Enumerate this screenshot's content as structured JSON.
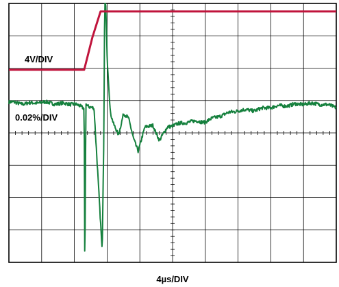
{
  "chart_data": {
    "type": "line",
    "title": "",
    "xlabel": "4µs/DIV",
    "ylabel": "",
    "grid": true,
    "x_divisions": 10,
    "y_divisions": 8,
    "x_unit_per_div_us": 4,
    "xlim_us": [
      0,
      40
    ],
    "colors": {
      "trace_step": "#c0143c",
      "trace_response": "#15803d",
      "grid": "#000000"
    },
    "series": [
      {
        "name": "4V/DIV",
        "volts_per_div": 4,
        "baseline_div": 5.95,
        "x_us": [
          0,
          9.2,
          10.2,
          11.2,
          40
        ],
        "y_volts": [
          0,
          0,
          4,
          7.2,
          7.2
        ]
      },
      {
        "name": "0.02%/DIV",
        "percent_per_div": 0.02,
        "baseline_div": 4.85,
        "x_us": [
          0,
          2,
          4,
          6,
          8,
          9.2,
          9.25,
          9.3,
          9.4,
          9.6,
          10.4,
          11.4,
          11.6,
          11.7,
          11.8,
          12,
          12.4,
          12.8,
          13.4,
          14,
          14.6,
          15.2,
          15.8,
          16.6,
          17.6,
          18.4,
          19.4,
          20.4,
          22,
          24,
          26,
          28,
          30,
          32,
          34,
          36,
          38,
          40
        ],
        "y_percent": [
          0.002,
          0.001,
          0.002,
          0.001,
          0.001,
          -0.002,
          -0.09,
          -0.09,
          0.001,
          0,
          -0.002,
          -0.09,
          -0.02,
          0.06,
          0.07,
          0.03,
          -0.005,
          -0.012,
          -0.018,
          -0.005,
          -0.008,
          -0.02,
          -0.028,
          -0.014,
          -0.012,
          -0.022,
          -0.013,
          -0.012,
          -0.01,
          -0.01,
          -0.006,
          -0.003,
          -0.003,
          -0.001,
          0,
          0.001,
          0.001,
          -0.001
        ]
      }
    ]
  }
}
